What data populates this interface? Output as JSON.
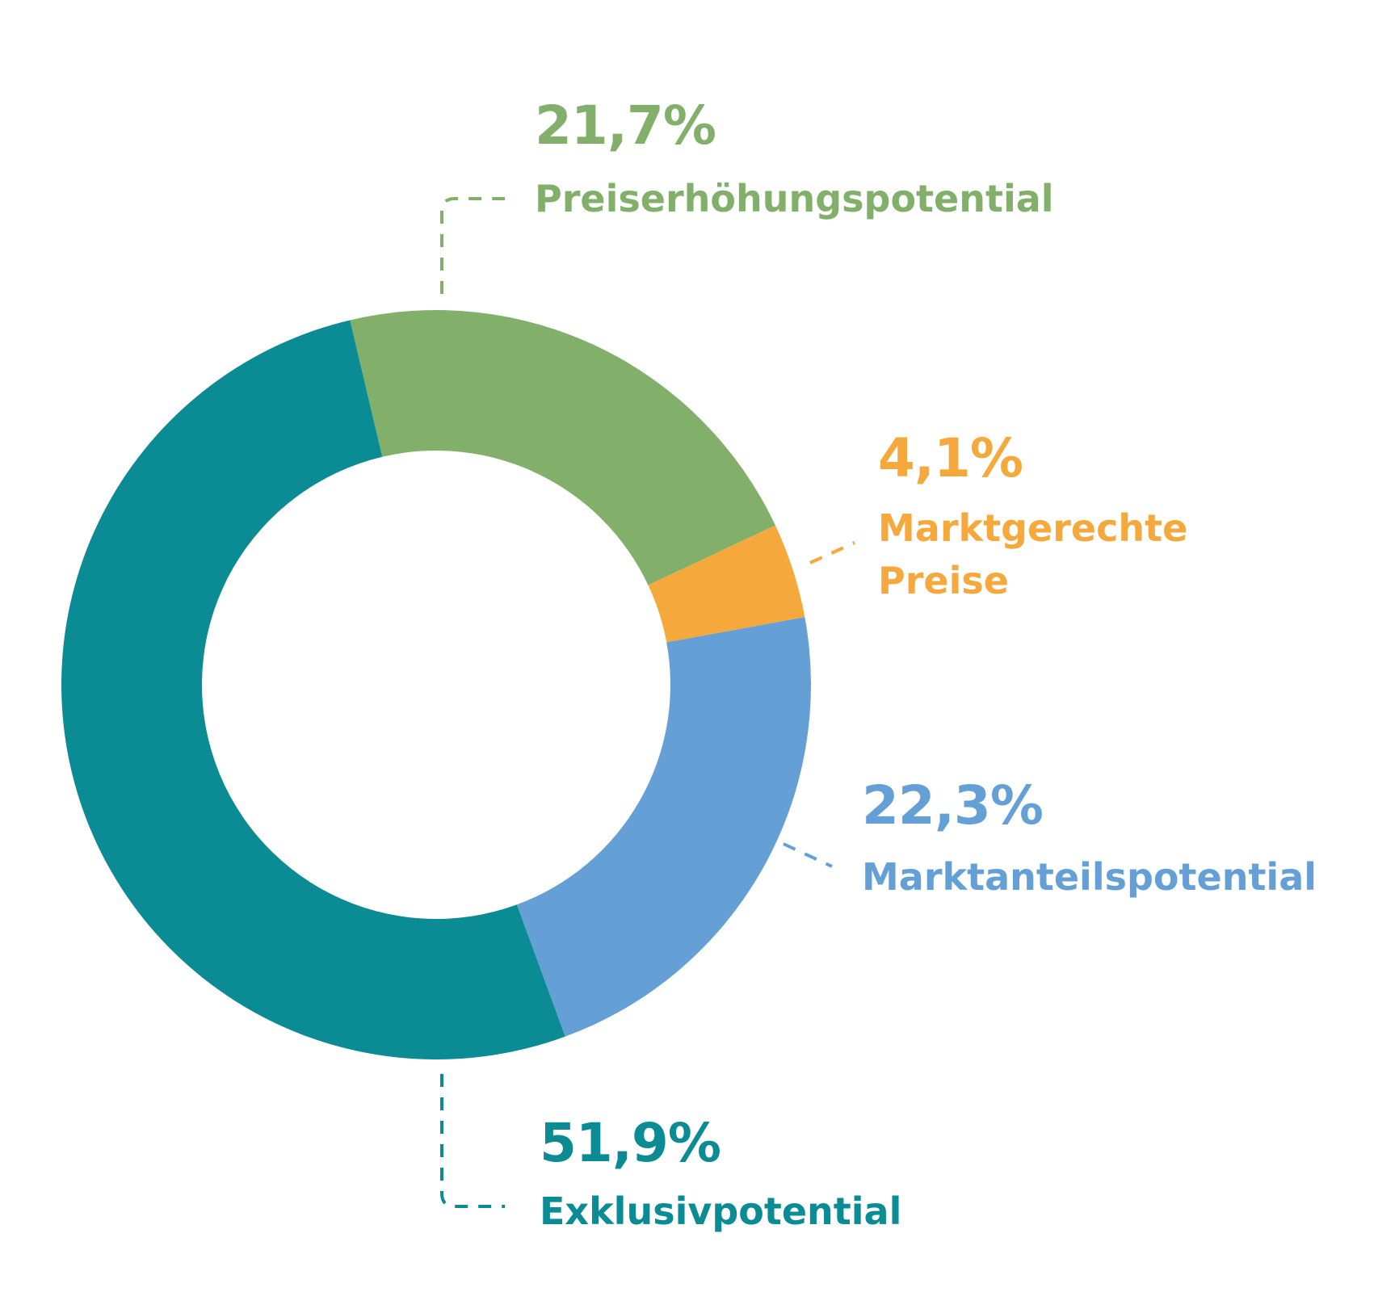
{
  "chart_data": {
    "type": "donut",
    "title": "",
    "categories": [
      "Preiserhöhungspotential",
      "Marktgerechte Preise",
      "Marktanteilspotential",
      "Exklusivpotential"
    ],
    "series": [
      {
        "values": [
          21.7,
          4.1,
          22.3,
          51.9
        ]
      }
    ],
    "labels": [
      {
        "value": "21,7%",
        "name": "Preiserhöhungspotential"
      },
      {
        "value": "4,1%",
        "name_line1": "Marktgerechte",
        "name_line2": "Preise"
      },
      {
        "value": "22,3%",
        "name": "Marktanteilspotential"
      },
      {
        "value": "51,9%",
        "name": "Exklusivpotential"
      }
    ],
    "colors": [
      "#82b06a",
      "#f5a93c",
      "#64a0d6",
      "#0b8b94"
    ],
    "legend": "none",
    "grid": false
  }
}
